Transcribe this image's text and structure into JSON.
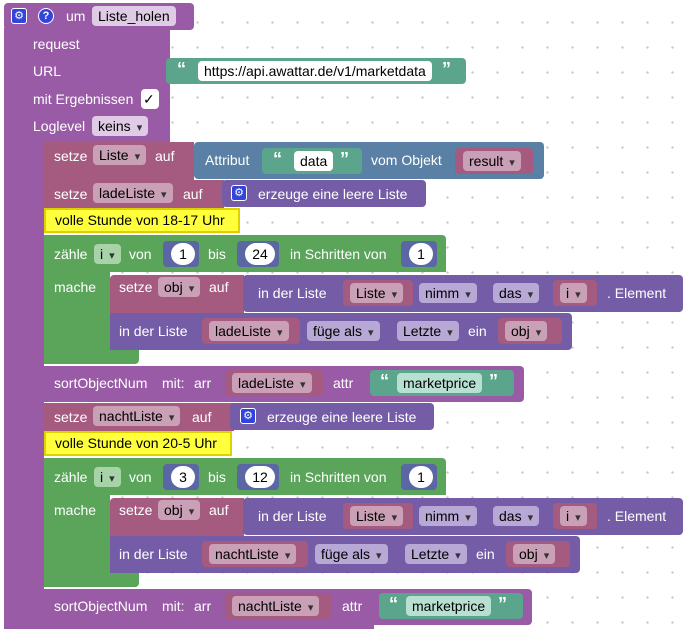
{
  "function": {
    "keyword": "um",
    "name": "Liste_holen"
  },
  "request": {
    "label": "request",
    "url_label": "URL",
    "url_value": "https://api.awattar.de/v1/marketdata",
    "results_label": "mit Ergebnissen",
    "results_checked": "✓",
    "loglevel_label": "Loglevel",
    "loglevel_value": "keins"
  },
  "blocks": {
    "set_liste": {
      "setze": "setze",
      "var": "Liste",
      "auf": "auf",
      "attribut": "Attribut",
      "attr_value": "data",
      "vom_objekt": "vom Objekt",
      "obj_var": "result"
    },
    "set_ladeliste": {
      "setze": "setze",
      "var": "ladeListe",
      "auf": "auf",
      "create": "erzeuge eine leere Liste"
    },
    "comment1": "volle Stunde von 18-17 Uhr",
    "loop1": {
      "zaehle": "zähle",
      "var": "i",
      "von": "von",
      "from": "1",
      "bis": "bis",
      "to": "24",
      "schritte": "in Schritten von",
      "step": "1",
      "mache": "mache",
      "set_obj": {
        "setze": "setze",
        "var": "obj",
        "auf": "auf",
        "in_der_liste": "in der Liste",
        "list": "Liste",
        "nimm": "nimm",
        "das": "das",
        "idx": "i",
        "element": ". Element"
      },
      "insert": {
        "in_der_liste": "in der Liste",
        "list": "ladeListe",
        "fuege": "füge als",
        "pos": "Letzte",
        "ein": "ein",
        "item": "obj"
      }
    },
    "sort1": {
      "fn": "sortObjectNum",
      "mit": "mit:",
      "arr": "arr",
      "list": "ladeListe",
      "attr": "attr",
      "value": "marketprice"
    },
    "set_nachtliste": {
      "setze": "setze",
      "var": "nachtListe",
      "auf": "auf",
      "create": "erzeuge eine leere Liste"
    },
    "comment2": "volle Stunde von 20-5 Uhr",
    "loop2": {
      "zaehle": "zähle",
      "var": "i",
      "von": "von",
      "from": "3",
      "bis": "bis",
      "to": "12",
      "schritte": "in Schritten von",
      "step": "1",
      "mache": "mache",
      "set_obj": {
        "setze": "setze",
        "var": "obj",
        "auf": "auf",
        "in_der_liste": "in der Liste",
        "list": "Liste",
        "nimm": "nimm",
        "das": "das",
        "idx": "i",
        "element": ". Element"
      },
      "insert": {
        "in_der_liste": "in der Liste",
        "list": "nachtListe",
        "fuege": "füge als",
        "pos": "Letzte",
        "ein": "ein",
        "item": "obj"
      }
    },
    "sort2": {
      "fn": "sortObjectNum",
      "mit": "mit:",
      "arr": "arr",
      "list": "nachtListe",
      "attr": "attr",
      "value": "marketprice"
    }
  }
}
